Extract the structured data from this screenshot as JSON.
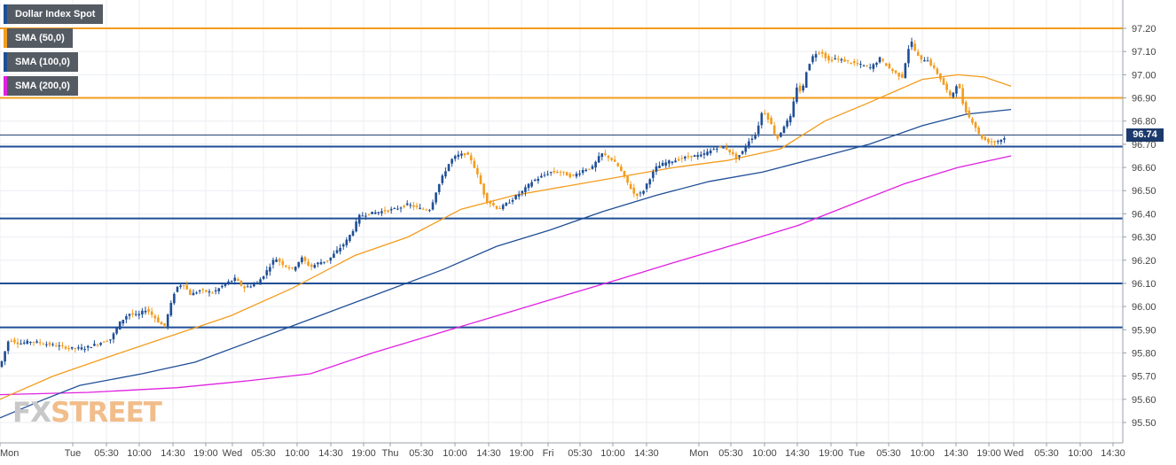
{
  "legend": [
    {
      "label": "Dollar Index Spot",
      "color": "#1f4e96"
    },
    {
      "label": "SMA (50,0)",
      "color": "#f39c1e"
    },
    {
      "label": "SMA (100,0)",
      "color": "#1f4e96"
    },
    {
      "label": "SMA (200,0)",
      "color": "#e020e0"
    }
  ],
  "watermark": {
    "part1": "FX",
    "part2": "STREET"
  },
  "last_price": "96.74",
  "chart_data": {
    "type": "candlestick",
    "title": "Dollar Index Spot",
    "ylim": [
      95.45,
      97.25
    ],
    "y_ticks": [
      "97.20",
      "97.10",
      "97.00",
      "96.90",
      "96.80",
      "96.70",
      "96.60",
      "96.50",
      "96.40",
      "96.30",
      "96.20",
      "96.10",
      "96.00",
      "95.90",
      "95.80",
      "95.70",
      "95.60",
      "95.50"
    ],
    "x_ticks": [
      "Mon",
      "Tue",
      "05:30",
      "10:00",
      "14:30",
      "19:00",
      "Wed",
      "05:30",
      "10:00",
      "14:30",
      "19:00",
      "Thu",
      "05:30",
      "10:00",
      "14:30",
      "19:00",
      "Fri",
      "05:30",
      "10:00",
      "14:30",
      "Mon",
      "05:30",
      "10:00",
      "14:30",
      "19:00",
      "Tue",
      "05:30",
      "10:00",
      "14:30",
      "19:00",
      "Wed",
      "05:30",
      "10:00",
      "14:30"
    ],
    "horizontal_levels": [
      {
        "value": 97.2,
        "color": "#f39c1e"
      },
      {
        "value": 96.9,
        "color": "#f39c1e"
      },
      {
        "value": 96.69,
        "color": "#1f4e96"
      },
      {
        "value": 96.38,
        "color": "#1f4e96"
      },
      {
        "value": 96.1,
        "color": "#1f4e96"
      },
      {
        "value": 95.91,
        "color": "#1f4e96"
      }
    ],
    "current_price_line": 96.74,
    "price_series": [
      [
        0,
        95.74
      ],
      [
        10,
        95.86
      ],
      [
        22,
        95.84
      ],
      [
        35,
        95.85
      ],
      [
        50,
        95.84
      ],
      [
        65,
        95.83
      ],
      [
        80,
        95.82
      ],
      [
        95,
        95.82
      ],
      [
        110,
        95.84
      ],
      [
        125,
        95.86
      ],
      [
        135,
        95.93
      ],
      [
        145,
        95.97
      ],
      [
        155,
        95.96
      ],
      [
        165,
        95.99
      ],
      [
        175,
        95.95
      ],
      [
        185,
        95.91
      ],
      [
        192,
        96.0
      ],
      [
        198,
        96.08
      ],
      [
        206,
        96.1
      ],
      [
        215,
        96.05
      ],
      [
        225,
        96.07
      ],
      [
        240,
        96.06
      ],
      [
        255,
        96.1
      ],
      [
        265,
        96.12
      ],
      [
        275,
        96.08
      ],
      [
        290,
        96.1
      ],
      [
        300,
        96.15
      ],
      [
        310,
        96.21
      ],
      [
        320,
        96.18
      ],
      [
        330,
        96.16
      ],
      [
        340,
        96.21
      ],
      [
        350,
        96.17
      ],
      [
        360,
        96.19
      ],
      [
        370,
        96.2
      ],
      [
        380,
        96.24
      ],
      [
        390,
        96.28
      ],
      [
        398,
        96.33
      ],
      [
        405,
        96.39
      ],
      [
        415,
        96.4
      ],
      [
        430,
        96.41
      ],
      [
        445,
        96.42
      ],
      [
        460,
        96.44
      ],
      [
        475,
        96.42
      ],
      [
        485,
        96.42
      ],
      [
        492,
        96.5
      ],
      [
        500,
        96.57
      ],
      [
        508,
        96.63
      ],
      [
        515,
        96.65
      ],
      [
        525,
        96.66
      ],
      [
        532,
        96.63
      ],
      [
        540,
        96.55
      ],
      [
        548,
        96.46
      ],
      [
        555,
        96.44
      ],
      [
        562,
        96.42
      ],
      [
        570,
        96.44
      ],
      [
        580,
        96.47
      ],
      [
        590,
        96.5
      ],
      [
        600,
        96.54
      ],
      [
        610,
        96.56
      ],
      [
        620,
        96.58
      ],
      [
        632,
        96.58
      ],
      [
        645,
        96.56
      ],
      [
        658,
        96.59
      ],
      [
        668,
        96.6
      ],
      [
        678,
        96.66
      ],
      [
        688,
        96.64
      ],
      [
        698,
        96.6
      ],
      [
        708,
        96.53
      ],
      [
        716,
        96.48
      ],
      [
        724,
        96.49
      ],
      [
        732,
        96.55
      ],
      [
        740,
        96.6
      ],
      [
        750,
        96.62
      ],
      [
        760,
        96.63
      ],
      [
        770,
        96.64
      ],
      [
        780,
        96.65
      ],
      [
        790,
        96.65
      ],
      [
        800,
        96.67
      ],
      [
        810,
        96.69
      ],
      [
        820,
        96.68
      ],
      [
        830,
        96.64
      ],
      [
        838,
        96.67
      ],
      [
        845,
        96.72
      ],
      [
        852,
        96.74
      ],
      [
        860,
        96.85
      ],
      [
        868,
        96.8
      ],
      [
        876,
        96.72
      ],
      [
        884,
        96.78
      ],
      [
        892,
        96.82
      ],
      [
        898,
        96.95
      ],
      [
        904,
        96.92
      ],
      [
        910,
        97.03
      ],
      [
        918,
        97.09
      ],
      [
        926,
        97.1
      ],
      [
        934,
        97.06
      ],
      [
        942,
        97.07
      ],
      [
        952,
        97.06
      ],
      [
        962,
        97.05
      ],
      [
        972,
        97.04
      ],
      [
        982,
        97.03
      ],
      [
        992,
        97.07
      ],
      [
        1002,
        97.03
      ],
      [
        1012,
        97.0
      ],
      [
        1018,
        96.99
      ],
      [
        1022,
        97.08
      ],
      [
        1027,
        97.15
      ],
      [
        1032,
        97.1
      ],
      [
        1038,
        97.06
      ],
      [
        1045,
        97.07
      ],
      [
        1052,
        97.03
      ],
      [
        1058,
        97.0
      ],
      [
        1065,
        96.95
      ],
      [
        1072,
        96.9
      ],
      [
        1080,
        96.97
      ],
      [
        1086,
        96.87
      ],
      [
        1092,
        96.82
      ],
      [
        1098,
        96.79
      ],
      [
        1104,
        96.74
      ],
      [
        1110,
        96.72
      ],
      [
        1116,
        96.71
      ],
      [
        1122,
        96.71
      ],
      [
        1128,
        96.72
      ],
      [
        1136,
        96.73
      ]
    ],
    "sma_50": [
      [
        0,
        95.6
      ],
      [
        60,
        95.7
      ],
      [
        120,
        95.78
      ],
      [
        190,
        95.87
      ],
      [
        260,
        95.96
      ],
      [
        330,
        96.08
      ],
      [
        400,
        96.22
      ],
      [
        460,
        96.3
      ],
      [
        520,
        96.42
      ],
      [
        580,
        96.48
      ],
      [
        640,
        96.52
      ],
      [
        700,
        96.56
      ],
      [
        760,
        96.6
      ],
      [
        820,
        96.63
      ],
      [
        880,
        96.68
      ],
      [
        930,
        96.8
      ],
      [
        980,
        96.88
      ],
      [
        1040,
        96.98
      ],
      [
        1080,
        97.0
      ],
      [
        1110,
        96.99
      ],
      [
        1140,
        96.95
      ]
    ],
    "sma_100": [
      [
        0,
        95.52
      ],
      [
        50,
        95.6
      ],
      [
        90,
        95.66
      ],
      [
        160,
        95.71
      ],
      [
        220,
        95.76
      ],
      [
        290,
        95.86
      ],
      [
        360,
        95.96
      ],
      [
        430,
        96.06
      ],
      [
        500,
        96.16
      ],
      [
        560,
        96.26
      ],
      [
        620,
        96.33
      ],
      [
        680,
        96.41
      ],
      [
        740,
        96.48
      ],
      [
        800,
        96.54
      ],
      [
        860,
        96.58
      ],
      [
        920,
        96.64
      ],
      [
        980,
        96.7
      ],
      [
        1040,
        96.78
      ],
      [
        1090,
        96.83
      ],
      [
        1140,
        96.85
      ]
    ],
    "sma_200": [
      [
        0,
        95.62
      ],
      [
        100,
        95.63
      ],
      [
        200,
        95.65
      ],
      [
        280,
        95.68
      ],
      [
        350,
        95.71
      ],
      [
        420,
        95.8
      ],
      [
        490,
        95.88
      ],
      [
        560,
        95.96
      ],
      [
        630,
        96.04
      ],
      [
        700,
        96.12
      ],
      [
        760,
        96.19
      ],
      [
        840,
        96.28
      ],
      [
        900,
        96.35
      ],
      [
        960,
        96.44
      ],
      [
        1020,
        96.53
      ],
      [
        1080,
        96.6
      ],
      [
        1140,
        96.65
      ]
    ]
  }
}
